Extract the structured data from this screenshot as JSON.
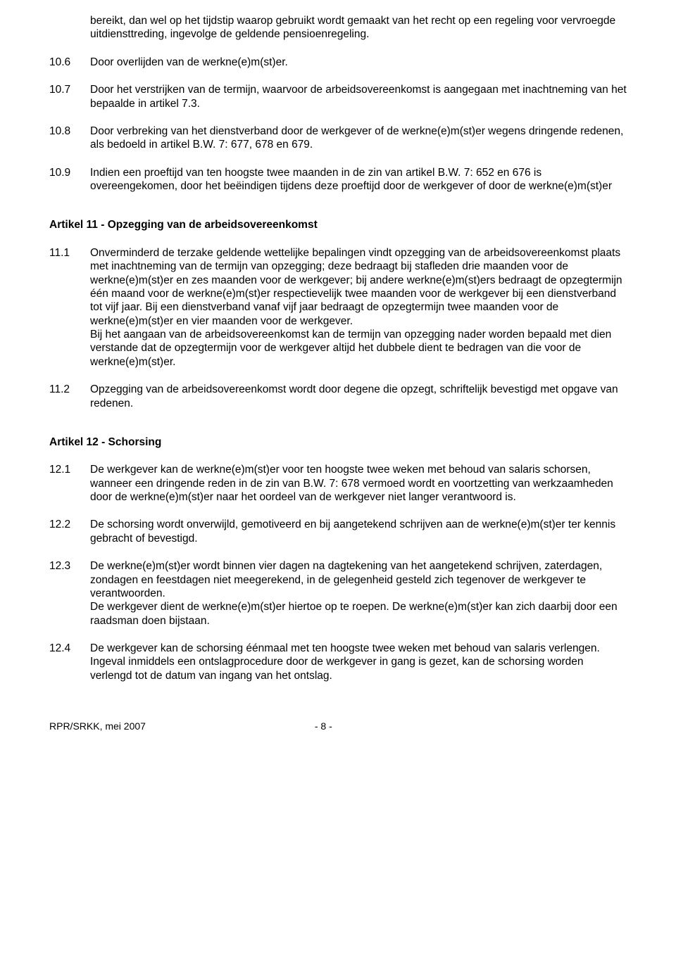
{
  "page": {
    "background_color": "#ffffff",
    "text_color": "#000000",
    "font_family": "Arial",
    "body_font_size_pt": 12,
    "heading_font_weight": "bold"
  },
  "clauses_top": [
    {
      "num": "",
      "text": "bereikt, dan wel op het tijdstip waarop gebruikt wordt gemaakt van het recht op een regeling voor vervroegde uitdiensttreding, ingevolge de geldende pensioenregeling."
    },
    {
      "num": "10.6",
      "text": "Door overlijden van de werkne(e)m(st)er."
    },
    {
      "num": "10.7",
      "text": "Door het verstrijken van de termijn, waarvoor de arbeidsovereenkomst is aangegaan met inachtneming van het bepaalde in artikel 7.3."
    },
    {
      "num": "10.8",
      "text": "Door verbreking van het dienstverband door de werkgever of de werkne(e)m(st)er wegens dringende redenen, als bedoeld in artikel B.W. 7: 677, 678 en 679."
    },
    {
      "num": "10.9",
      "text": "Indien een proeftijd van ten hoogste twee maanden in de zin van artikel B.W. 7: 652 en 676 is overeengekomen, door het beëindigen tijdens deze proeftijd door de werkgever of door de werkne(e)m(st)er"
    }
  ],
  "article11": {
    "heading": "Artikel 11 - Opzegging van de arbeidsovereenkomst",
    "clauses": [
      {
        "num": "11.1",
        "text": "Onverminderd de terzake geldende wettelijke bepalingen vindt opzegging van de arbeidsovereenkomst plaats met inachtneming van de termijn van opzegging; deze bedraagt bij stafleden drie maanden voor de werkne(e)m(st)er en zes maanden voor de werkgever; bij andere werkne(e)m(st)ers bedraagt de opzegtermijn één maand voor de werkne(e)m(st)er respectievelijk twee maanden voor de werkgever bij een dienstverband tot vijf jaar. Bij een dienstverband vanaf vijf jaar bedraagt de opzegtermijn twee maanden voor de werkne(e)m(st)er en vier maanden voor de werkgever.\nBij het aangaan van de arbeidsovereenkomst kan de termijn van opzegging nader worden bepaald met dien verstande dat de opzegtermijn voor de werkgever altijd het dubbele dient te bedragen van die voor de werkne(e)m(st)er."
      },
      {
        "num": "11.2",
        "text": "Opzegging van de arbeidsovereenkomst wordt door degene die opzegt, schriftelijk bevestigd met opgave van redenen."
      }
    ]
  },
  "article12": {
    "heading": "Artikel 12 - Schorsing",
    "clauses": [
      {
        "num": "12.1",
        "text": "De werkgever kan de werkne(e)m(st)er voor ten hoogste twee weken met behoud van salaris schorsen, wanneer een dringende reden in de zin van B.W. 7: 678 vermoed wordt en voortzetting van werkzaamheden door de werkne(e)m(st)er naar het oordeel van de werkgever niet langer verantwoord is."
      },
      {
        "num": "12.2",
        "text": "De schorsing wordt onverwijld, gemotiveerd en bij aangetekend schrijven aan de werkne(e)m(st)er ter kennis gebracht of bevestigd."
      },
      {
        "num": "12.3",
        "text": "De werkne(e)m(st)er wordt binnen vier dagen na dagtekening van het aangetekend schrijven, zaterdagen, zondagen en feestdagen niet meegerekend, in de gelegenheid gesteld zich tegenover de werkgever te verantwoorden.\nDe werkgever dient de werkne(e)m(st)er hiertoe op te roepen. De werkne(e)m(st)er kan zich daarbij door een raadsman doen bijstaan."
      },
      {
        "num": "12.4",
        "text": "De werkgever kan de schorsing éénmaal met ten hoogste twee weken met behoud van salaris verlengen. Ingeval inmiddels een ontslagprocedure door de werkgever in gang is gezet, kan de schorsing worden verlengd tot de datum van ingang van het ontslag."
      }
    ]
  },
  "footer": {
    "left": "RPR/SRKK, mei 2007",
    "page": "- 8 -"
  }
}
